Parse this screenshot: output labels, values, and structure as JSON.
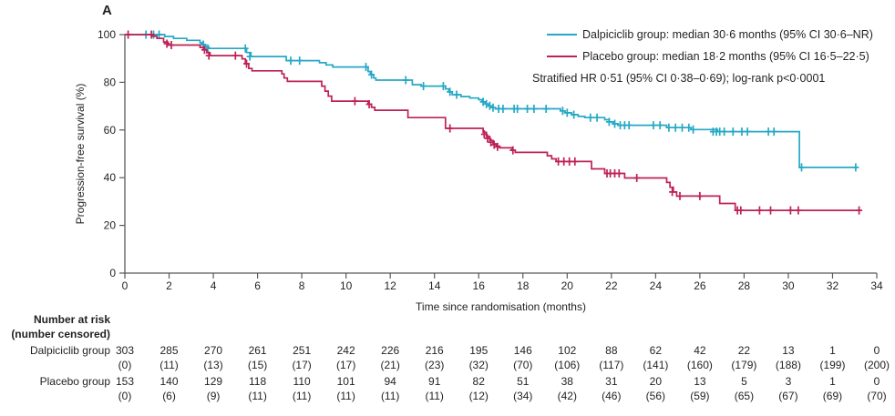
{
  "panel_label": "A",
  "colors": {
    "dalpiciclib": "#25a8c5",
    "placebo": "#be2255",
    "axis": "#58595b",
    "text": "#231f20"
  },
  "legend": {
    "entries": [
      {
        "label": "Dalpiciclib group: median 30·6 months (95% CI 30·6–NR)",
        "color": "#25a8c5"
      },
      {
        "label": "Placebo group: median 18·2 months (95% CI 16·5–22·5)",
        "color": "#be2255"
      }
    ],
    "note": "Stratified HR 0·51 (95% CI 0·38–0·69); log-rank p<0·0001"
  },
  "chart_data": {
    "type": "line",
    "subtype": "kaplan-meier-step",
    "title": "",
    "xlabel": "Time since randomisation (months)",
    "ylabel": "Progression-free survival (%)",
    "xlim": [
      0,
      34
    ],
    "ylim": [
      0,
      100
    ],
    "xticks": [
      0,
      2,
      4,
      6,
      8,
      10,
      12,
      14,
      16,
      18,
      20,
      22,
      24,
      26,
      28,
      30,
      32,
      34
    ],
    "yticks": [
      0,
      20,
      40,
      60,
      80,
      100
    ],
    "grid": false,
    "legend_position": "top-right",
    "series": [
      {
        "name": "Dalpiciclib group",
        "color": "#25a8c5",
        "median_months": "30.6",
        "ci": "30.6-NR",
        "end_month": 33.1,
        "steps": [
          [
            0,
            100
          ],
          [
            1.8,
            99.2
          ],
          [
            2.2,
            98.4
          ],
          [
            2.8,
            97.6
          ],
          [
            3.4,
            96.6
          ],
          [
            3.5,
            95.8
          ],
          [
            3.65,
            94.9
          ],
          [
            3.8,
            94.2
          ],
          [
            5.5,
            92.5
          ],
          [
            5.7,
            90.8
          ],
          [
            7.3,
            89.1
          ],
          [
            8.8,
            88.2
          ],
          [
            9.1,
            87.3
          ],
          [
            9.4,
            86.4
          ],
          [
            11.0,
            84.5
          ],
          [
            11.1,
            83.2
          ],
          [
            11.25,
            81.8
          ],
          [
            11.35,
            80.9
          ],
          [
            13.0,
            79.0
          ],
          [
            13.4,
            78.4
          ],
          [
            14.5,
            77.2
          ],
          [
            14.65,
            76.0
          ],
          [
            14.8,
            74.8
          ],
          [
            15.2,
            74.0
          ],
          [
            15.6,
            73.4
          ],
          [
            16.0,
            72.7
          ],
          [
            16.15,
            71.8
          ],
          [
            16.3,
            70.9
          ],
          [
            16.45,
            70.1
          ],
          [
            16.6,
            69.4
          ],
          [
            16.75,
            68.9
          ],
          [
            19.7,
            68.0
          ],
          [
            19.9,
            67.2
          ],
          [
            20.2,
            66.4
          ],
          [
            20.5,
            65.7
          ],
          [
            20.8,
            65.2
          ],
          [
            21.7,
            64.3
          ],
          [
            21.9,
            63.4
          ],
          [
            22.1,
            62.6
          ],
          [
            22.3,
            62.0
          ],
          [
            24.5,
            61.0
          ],
          [
            25.6,
            60.2
          ],
          [
            26.8,
            59.3
          ],
          [
            30.5,
            44.3
          ]
        ],
        "censors": [
          [
            0.95,
            100
          ],
          [
            1.3,
            100
          ],
          [
            1.55,
            100
          ],
          [
            3.55,
            95.8
          ],
          [
            3.75,
            94.2
          ],
          [
            5.45,
            94.2
          ],
          [
            5.65,
            90.8
          ],
          [
            7.5,
            89.1
          ],
          [
            7.9,
            89.1
          ],
          [
            10.9,
            86.4
          ],
          [
            11.15,
            83.2
          ],
          [
            12.7,
            80.9
          ],
          [
            13.5,
            78.4
          ],
          [
            14.4,
            78.4
          ],
          [
            14.7,
            76.0
          ],
          [
            15.0,
            74.8
          ],
          [
            16.2,
            71.8
          ],
          [
            16.35,
            70.9
          ],
          [
            16.5,
            70.1
          ],
          [
            16.65,
            69.4
          ],
          [
            16.9,
            68.9
          ],
          [
            17.1,
            68.9
          ],
          [
            17.6,
            68.9
          ],
          [
            17.75,
            68.9
          ],
          [
            18.2,
            68.9
          ],
          [
            18.5,
            68.9
          ],
          [
            19.05,
            68.9
          ],
          [
            19.8,
            68.0
          ],
          [
            20.0,
            67.2
          ],
          [
            20.3,
            66.4
          ],
          [
            21.05,
            65.2
          ],
          [
            21.35,
            65.2
          ],
          [
            21.9,
            63.4
          ],
          [
            22.15,
            62.6
          ],
          [
            22.4,
            62.0
          ],
          [
            22.6,
            62.0
          ],
          [
            22.8,
            62.0
          ],
          [
            23.9,
            62.0
          ],
          [
            24.2,
            62.0
          ],
          [
            24.6,
            61.0
          ],
          [
            24.9,
            61.0
          ],
          [
            25.2,
            61.0
          ],
          [
            25.5,
            61.0
          ],
          [
            25.7,
            60.2
          ],
          [
            26.6,
            59.3
          ],
          [
            26.75,
            59.3
          ],
          [
            26.9,
            59.3
          ],
          [
            27.1,
            59.3
          ],
          [
            27.5,
            59.3
          ],
          [
            27.9,
            59.3
          ],
          [
            28.15,
            59.3
          ],
          [
            29.1,
            59.3
          ],
          [
            29.35,
            59.3
          ],
          [
            30.6,
            44.3
          ],
          [
            33.05,
            44.3
          ]
        ]
      },
      {
        "name": "Placebo group",
        "color": "#be2255",
        "median_months": "18.2",
        "ci": "16.5-22.5",
        "end_month": 33.25,
        "steps": [
          [
            0,
            100
          ],
          [
            1.2,
            99.3
          ],
          [
            1.45,
            98.4
          ],
          [
            1.75,
            96.9
          ],
          [
            1.95,
            95.6
          ],
          [
            3.4,
            94.6
          ],
          [
            3.55,
            93.6
          ],
          [
            3.7,
            92.4
          ],
          [
            3.85,
            91.2
          ],
          [
            5.3,
            89.8
          ],
          [
            5.45,
            87.8
          ],
          [
            5.6,
            85.8
          ],
          [
            5.75,
            84.8
          ],
          [
            7.1,
            83.5
          ],
          [
            7.2,
            81.8
          ],
          [
            7.35,
            80.4
          ],
          [
            8.9,
            78.4
          ],
          [
            9.05,
            76.3
          ],
          [
            9.2,
            74.2
          ],
          [
            9.35,
            72.1
          ],
          [
            11.0,
            70.8
          ],
          [
            11.15,
            69.5
          ],
          [
            11.3,
            68.3
          ],
          [
            12.8,
            65.2
          ],
          [
            14.5,
            60.7
          ],
          [
            16.2,
            59.0
          ],
          [
            16.35,
            57.3
          ],
          [
            16.5,
            55.6
          ],
          [
            16.65,
            54.2
          ],
          [
            16.8,
            53.2
          ],
          [
            16.95,
            52.5
          ],
          [
            17.5,
            51.5
          ],
          [
            17.65,
            50.6
          ],
          [
            19.1,
            49.2
          ],
          [
            19.3,
            47.9
          ],
          [
            19.5,
            46.8
          ],
          [
            21.1,
            43.7
          ],
          [
            21.7,
            41.8
          ],
          [
            22.6,
            39.9
          ],
          [
            24.5,
            38.0
          ],
          [
            24.65,
            36.0
          ],
          [
            24.8,
            34.0
          ],
          [
            24.95,
            32.3
          ],
          [
            26.9,
            29.2
          ],
          [
            27.6,
            26.3
          ]
        ],
        "censors": [
          [
            0.15,
            100
          ],
          [
            1.2,
            100
          ],
          [
            1.9,
            96.2
          ],
          [
            2.1,
            95.6
          ],
          [
            3.6,
            93.6
          ],
          [
            3.8,
            91.2
          ],
          [
            5.0,
            91.2
          ],
          [
            5.5,
            87.8
          ],
          [
            10.4,
            72.1
          ],
          [
            11.05,
            70.8
          ],
          [
            14.7,
            60.7
          ],
          [
            16.25,
            58.2
          ],
          [
            16.4,
            56.5
          ],
          [
            16.55,
            54.9
          ],
          [
            16.7,
            53.8
          ],
          [
            16.85,
            52.9
          ],
          [
            17.55,
            51.5
          ],
          [
            19.6,
            46.8
          ],
          [
            19.85,
            46.8
          ],
          [
            20.1,
            46.8
          ],
          [
            20.35,
            46.8
          ],
          [
            21.8,
            41.8
          ],
          [
            21.95,
            41.8
          ],
          [
            22.15,
            41.8
          ],
          [
            22.35,
            41.8
          ],
          [
            23.15,
            39.9
          ],
          [
            24.75,
            34.0
          ],
          [
            25.1,
            32.3
          ],
          [
            26.0,
            32.3
          ],
          [
            27.7,
            26.3
          ],
          [
            27.85,
            26.3
          ],
          [
            28.7,
            26.3
          ],
          [
            29.2,
            26.3
          ],
          [
            30.1,
            26.3
          ],
          [
            30.45,
            26.3
          ],
          [
            33.2,
            26.3
          ]
        ]
      }
    ]
  },
  "risk_table": {
    "header_line1": "Number at risk",
    "header_line2": "(number censored)",
    "rows": [
      {
        "label": "Dalpiciclib group",
        "at_risk": [
          "303",
          "285",
          "270",
          "261",
          "251",
          "242",
          "226",
          "216",
          "195",
          "146",
          "102",
          "88",
          "62",
          "42",
          "22",
          "13",
          "1",
          "0"
        ],
        "censored": [
          "(0)",
          "(11)",
          "(13)",
          "(15)",
          "(17)",
          "(17)",
          "(21)",
          "(23)",
          "(32)",
          "(70)",
          "(106)",
          "(117)",
          "(141)",
          "(160)",
          "(179)",
          "(188)",
          "(199)",
          "(200)"
        ]
      },
      {
        "label": "Placebo group",
        "at_risk": [
          "153",
          "140",
          "129",
          "118",
          "110",
          "101",
          "94",
          "91",
          "82",
          "51",
          "38",
          "31",
          "20",
          "13",
          "5",
          "3",
          "1",
          "0"
        ],
        "censored": [
          "(0)",
          "(6)",
          "(9)",
          "(11)",
          "(11)",
          "(11)",
          "(11)",
          "(11)",
          "(12)",
          "(34)",
          "(42)",
          "(46)",
          "(56)",
          "(59)",
          "(65)",
          "(67)",
          "(69)",
          "(70)"
        ]
      }
    ]
  }
}
